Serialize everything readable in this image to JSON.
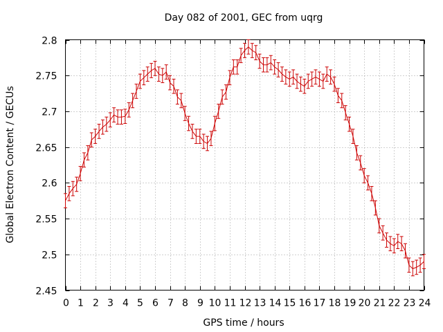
{
  "chart_data": {
    "type": "line",
    "title": "Day 082 of 2001, GEC from uqrg",
    "xlabel": "GPS time / hours",
    "ylabel": "Global Electron Content / GECUs",
    "xlim": [
      0,
      24
    ],
    "ylim": [
      2.45,
      2.8
    ],
    "grid": true,
    "xticks": [
      "0",
      "1",
      "2",
      "3",
      "4",
      "5",
      "6",
      "7",
      "8",
      "9",
      "10",
      "11",
      "12",
      "13",
      "14",
      "15",
      "16",
      "17",
      "18",
      "19",
      "20",
      "21",
      "22",
      "23",
      "24"
    ],
    "yticks": [
      "2.45",
      "2.5",
      "2.55",
      "2.6",
      "2.65",
      "2.7",
      "2.75",
      "2.8"
    ],
    "series": [
      {
        "color": "#cc0000",
        "error_bar_halfwidth": 0.01,
        "x": [
          0,
          0.25,
          0.5,
          0.75,
          1,
          1.25,
          1.5,
          1.75,
          2,
          2.25,
          2.5,
          2.75,
          3,
          3.25,
          3.5,
          3.75,
          4,
          4.25,
          4.5,
          4.75,
          5,
          5.25,
          5.5,
          5.75,
          6,
          6.25,
          6.5,
          6.75,
          7,
          7.25,
          7.5,
          7.75,
          8,
          8.25,
          8.5,
          8.75,
          9,
          9.25,
          9.5,
          9.75,
          10,
          10.25,
          10.5,
          10.75,
          11,
          11.25,
          11.5,
          11.75,
          12,
          12.25,
          12.5,
          12.75,
          13,
          13.25,
          13.5,
          13.75,
          14,
          14.25,
          14.5,
          14.75,
          15,
          15.25,
          15.5,
          15.75,
          16,
          16.25,
          16.5,
          16.75,
          17,
          17.25,
          17.5,
          17.75,
          18,
          18.25,
          18.5,
          18.75,
          19,
          19.25,
          19.5,
          19.75,
          20,
          20.25,
          20.5,
          20.75,
          21,
          21.25,
          21.5,
          21.75,
          22,
          22.25,
          22.5,
          22.75,
          23,
          23.25,
          23.5,
          23.75,
          24
        ],
        "y": [
          2.575,
          2.585,
          2.592,
          2.598,
          2.613,
          2.632,
          2.642,
          2.66,
          2.665,
          2.672,
          2.678,
          2.682,
          2.688,
          2.695,
          2.692,
          2.692,
          2.693,
          2.702,
          2.715,
          2.728,
          2.742,
          2.747,
          2.752,
          2.757,
          2.76,
          2.752,
          2.75,
          2.755,
          2.74,
          2.735,
          2.72,
          2.715,
          2.697,
          2.683,
          2.672,
          2.665,
          2.665,
          2.658,
          2.655,
          2.662,
          2.683,
          2.7,
          2.72,
          2.727,
          2.747,
          2.762,
          2.762,
          2.778,
          2.785,
          2.79,
          2.785,
          2.782,
          2.77,
          2.765,
          2.765,
          2.768,
          2.762,
          2.758,
          2.752,
          2.748,
          2.745,
          2.748,
          2.742,
          2.738,
          2.735,
          2.742,
          2.745,
          2.748,
          2.745,
          2.742,
          2.752,
          2.748,
          2.738,
          2.722,
          2.715,
          2.698,
          2.682,
          2.665,
          2.642,
          2.628,
          2.61,
          2.6,
          2.585,
          2.565,
          2.54,
          2.53,
          2.52,
          2.515,
          2.512,
          2.518,
          2.515,
          2.505,
          2.485,
          2.48,
          2.482,
          2.485,
          2.49
        ]
      }
    ]
  }
}
